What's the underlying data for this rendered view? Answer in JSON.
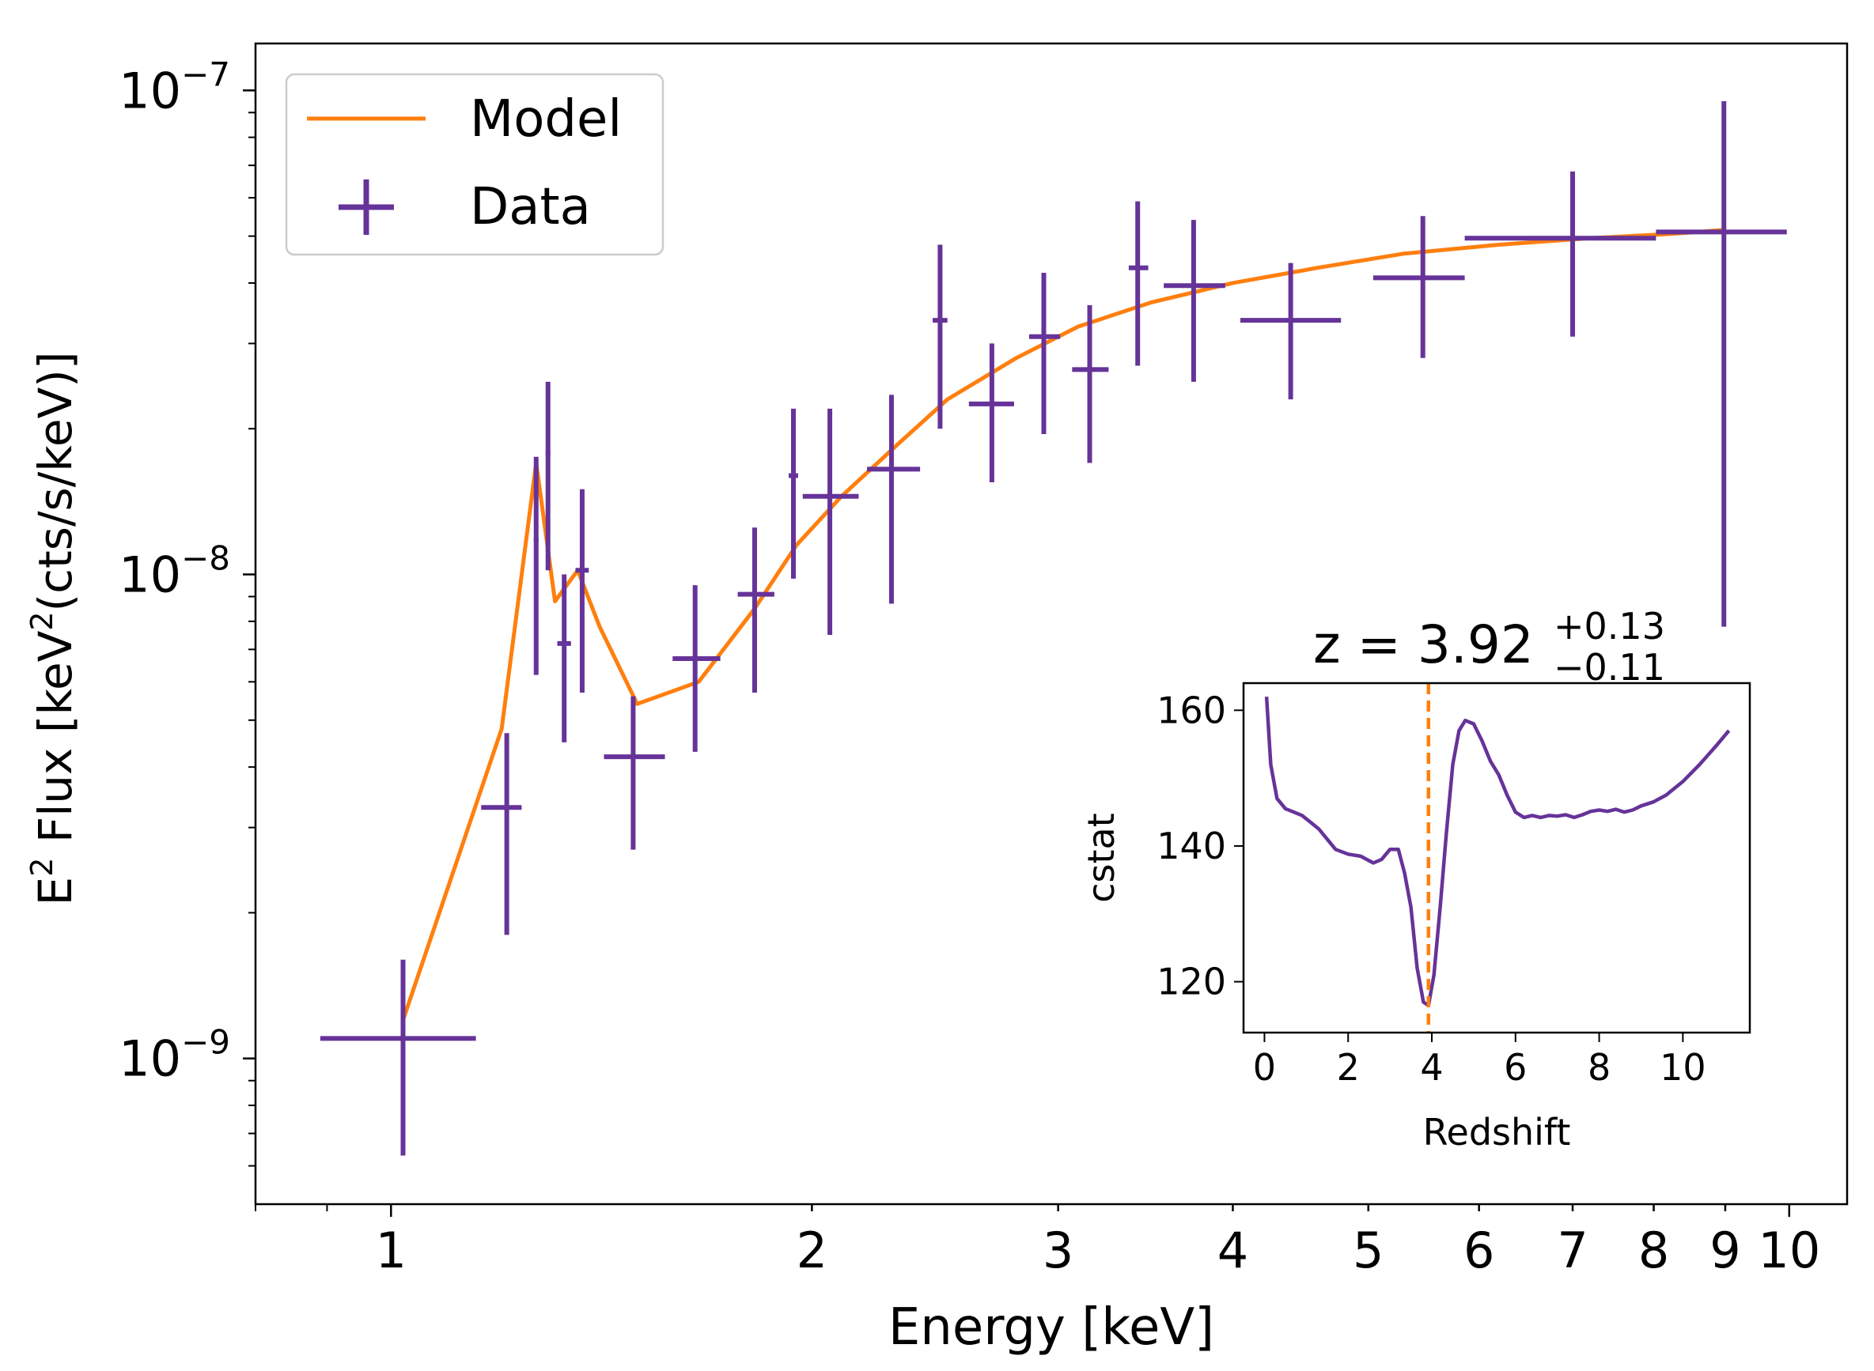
{
  "colors": {
    "model": "#ff7f0e",
    "data": "#663399",
    "axes": "#000000",
    "legend_border": "#cccccc"
  },
  "chart_data": [
    {
      "type": "line",
      "role": "main",
      "xscale": "log",
      "yscale": "log",
      "xlabel": "Energy [keV]",
      "ylabel_parts": {
        "base": "E",
        "sup1": "2",
        "mid": " Flux [keV",
        "sup2": "2",
        "end": "(cts/s/keV)]"
      },
      "xlim": [
        0.8,
        11
      ],
      "ylim": [
        5e-10,
        1.25e-07
      ],
      "xticks": [
        1,
        2,
        3,
        4,
        5,
        6,
        7,
        8,
        9,
        10
      ],
      "xtick_labels": [
        "1",
        "2",
        "3",
        "4",
        "5",
        "6",
        "7",
        "8",
        "9",
        "10"
      ],
      "yticks": [
        1e-09,
        1e-08,
        1e-07
      ],
      "ytick_labels": [
        {
          "base": "10",
          "exp": "−9"
        },
        {
          "base": "10",
          "exp": "−8"
        },
        {
          "base": "10",
          "exp": "−7"
        }
      ],
      "legend": {
        "placement": "top-left",
        "entries": [
          {
            "label": "Model",
            "kind": "line"
          },
          {
            "label": "Data",
            "kind": "errorbar"
          }
        ]
      },
      "model": {
        "x": [
          1.02,
          1.2,
          1.27,
          1.31,
          1.36,
          1.41,
          1.5,
          1.66,
          1.82,
          1.95,
          2.1,
          2.3,
          2.5,
          2.8,
          3.1,
          3.5,
          4.0,
          4.6,
          5.3,
          6.2,
          7.2,
          8.2,
          9.0
        ],
        "y": [
          1.2e-09,
          4.8e-09,
          1.7e-08,
          8.8e-09,
          1.02e-08,
          7.8e-09,
          5.4e-09,
          6e-09,
          8.5e-09,
          1.15e-08,
          1.45e-08,
          1.85e-08,
          2.3e-08,
          2.8e-08,
          3.25e-08,
          3.65e-08,
          4e-08,
          4.3e-08,
          4.6e-08,
          4.8e-08,
          4.95e-08,
          5.05e-08,
          5.15e-08
        ]
      },
      "data": [
        {
          "x": 1.02,
          "xlo": 0.89,
          "xhi": 1.15,
          "y": 1.1e-09,
          "ylo": 6.3e-10,
          "yhi": 1.6e-09
        },
        {
          "x": 1.21,
          "xlo": 1.16,
          "xhi": 1.24,
          "y": 3.3e-09,
          "ylo": 1.8e-09,
          "yhi": 4.7e-09
        },
        {
          "x": 1.27,
          "xlo": 1.265,
          "xhi": 1.275,
          "y": 1.18e-08,
          "ylo": 6.2e-09,
          "yhi": 1.75e-08
        },
        {
          "x": 1.295,
          "xlo": 1.29,
          "xhi": 1.3,
          "y": 1.78e-08,
          "ylo": 1.02e-08,
          "yhi": 2.5e-08
        },
        {
          "x": 1.33,
          "xlo": 1.315,
          "xhi": 1.345,
          "y": 7.2e-09,
          "ylo": 4.5e-09,
          "yhi": 1e-08
        },
        {
          "x": 1.37,
          "xlo": 1.355,
          "xhi": 1.385,
          "y": 1.02e-08,
          "ylo": 5.7e-09,
          "yhi": 1.5e-08
        },
        {
          "x": 1.49,
          "xlo": 1.42,
          "xhi": 1.57,
          "y": 4.2e-09,
          "ylo": 2.7e-09,
          "yhi": 5.6e-09
        },
        {
          "x": 1.65,
          "xlo": 1.59,
          "xhi": 1.72,
          "y": 6.7e-09,
          "ylo": 4.3e-09,
          "yhi": 9.5e-09
        },
        {
          "x": 1.82,
          "xlo": 1.77,
          "xhi": 1.88,
          "y": 9.1e-09,
          "ylo": 5.7e-09,
          "yhi": 1.25e-08
        },
        {
          "x": 1.94,
          "xlo": 1.925,
          "xhi": 1.955,
          "y": 1.6e-08,
          "ylo": 9.8e-09,
          "yhi": 2.2e-08
        },
        {
          "x": 2.06,
          "xlo": 1.97,
          "xhi": 2.16,
          "y": 1.45e-08,
          "ylo": 7.5e-09,
          "yhi": 2.2e-08
        },
        {
          "x": 2.28,
          "xlo": 2.19,
          "xhi": 2.39,
          "y": 1.65e-08,
          "ylo": 8.7e-09,
          "yhi": 2.35e-08
        },
        {
          "x": 2.47,
          "xlo": 2.44,
          "xhi": 2.5,
          "y": 3.35e-08,
          "ylo": 2e-08,
          "yhi": 4.8e-08
        },
        {
          "x": 2.69,
          "xlo": 2.59,
          "xhi": 2.79,
          "y": 2.25e-08,
          "ylo": 1.55e-08,
          "yhi": 3e-08
        },
        {
          "x": 2.93,
          "xlo": 2.86,
          "xhi": 3.01,
          "y": 3.1e-08,
          "ylo": 1.95e-08,
          "yhi": 4.2e-08
        },
        {
          "x": 3.16,
          "xlo": 3.07,
          "xhi": 3.26,
          "y": 2.65e-08,
          "ylo": 1.7e-08,
          "yhi": 3.6e-08
        },
        {
          "x": 3.42,
          "xlo": 3.37,
          "xhi": 3.48,
          "y": 4.3e-08,
          "ylo": 2.7e-08,
          "yhi": 5.9e-08
        },
        {
          "x": 3.75,
          "xlo": 3.57,
          "xhi": 3.95,
          "y": 3.95e-08,
          "ylo": 2.5e-08,
          "yhi": 5.4e-08
        },
        {
          "x": 4.4,
          "xlo": 4.05,
          "xhi": 4.78,
          "y": 3.35e-08,
          "ylo": 2.3e-08,
          "yhi": 4.4e-08
        },
        {
          "x": 5.47,
          "xlo": 5.04,
          "xhi": 5.86,
          "y": 4.1e-08,
          "ylo": 2.8e-08,
          "yhi": 5.5e-08
        },
        {
          "x": 7.0,
          "xlo": 5.86,
          "xhi": 8.03,
          "y": 4.95e-08,
          "ylo": 3.1e-08,
          "yhi": 6.8e-08
        },
        {
          "x": 8.98,
          "xlo": 8.03,
          "xhi": 9.96,
          "y": 5.1e-08,
          "ylo": 7.8e-09,
          "yhi": 9.5e-08
        }
      ]
    },
    {
      "type": "line",
      "role": "inset",
      "title": {
        "prefix": "z = 3.92",
        "sup": "+0.13",
        "sub": "−0.11"
      },
      "xlabel": "Redshift",
      "ylabel": "cstat",
      "xlim": [
        -0.5,
        11.6
      ],
      "ylim": [
        112.5,
        164
      ],
      "xticks": [
        0,
        2,
        4,
        6,
        8,
        10
      ],
      "yticks": [
        120,
        140,
        160
      ],
      "best_fit_z": 3.92,
      "x": [
        0.05,
        0.15,
        0.3,
        0.5,
        0.7,
        0.9,
        1.1,
        1.3,
        1.5,
        1.7,
        2.0,
        2.3,
        2.6,
        2.8,
        3.0,
        3.2,
        3.35,
        3.5,
        3.65,
        3.8,
        3.92,
        4.05,
        4.2,
        4.35,
        4.5,
        4.65,
        4.8,
        5.0,
        5.2,
        5.4,
        5.6,
        5.8,
        6.0,
        6.2,
        6.4,
        6.6,
        6.8,
        7.0,
        7.2,
        7.4,
        7.6,
        7.8,
        8.0,
        8.2,
        8.4,
        8.6,
        8.8,
        9.0,
        9.3,
        9.6,
        10.0,
        10.4,
        10.8,
        11.1
      ],
      "y": [
        162,
        152,
        147,
        145.5,
        145,
        144.5,
        143.5,
        142.5,
        141,
        139.5,
        138.8,
        138.5,
        137.5,
        138,
        139.5,
        139.5,
        136,
        131,
        122,
        117,
        116.5,
        121,
        131,
        142,
        152,
        157,
        158.5,
        158,
        155.5,
        152.5,
        150.5,
        147.5,
        145,
        144.2,
        144.5,
        144.2,
        144.5,
        144.4,
        144.6,
        144.2,
        144.6,
        145.1,
        145.3,
        145.1,
        145.4,
        145,
        145.3,
        145.9,
        146.5,
        147.5,
        149.5,
        152,
        154.8,
        157
      ]
    }
  ]
}
